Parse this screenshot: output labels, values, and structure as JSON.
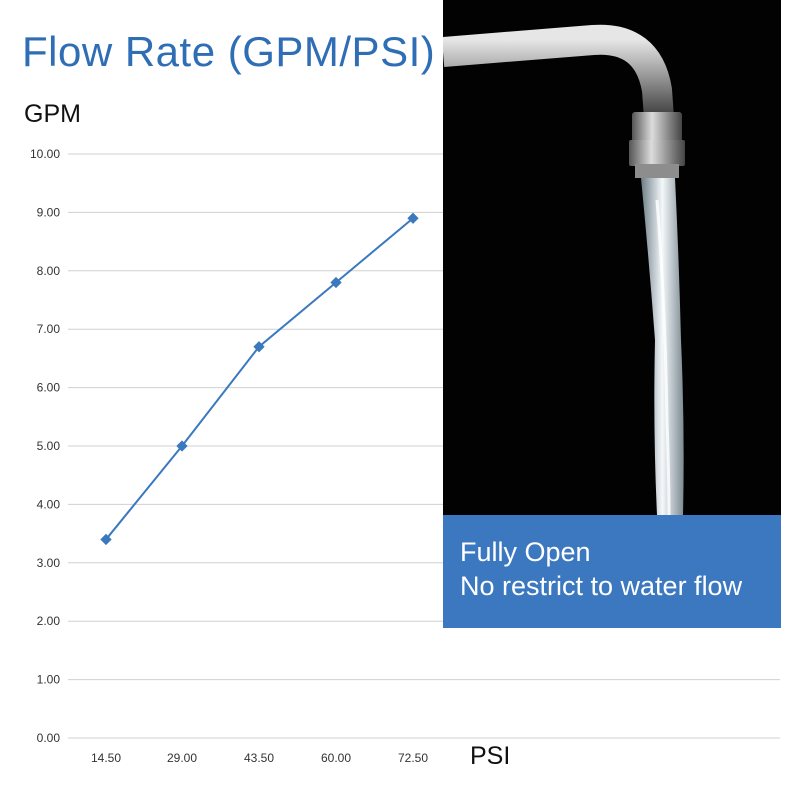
{
  "chart_data": {
    "type": "line",
    "title": "Flow Rate (GPM/PSI)",
    "ylabel": "GPM",
    "xlabel": "PSI",
    "categories": [
      "14.50",
      "29.00",
      "43.50",
      "60.00",
      "72.50"
    ],
    "series": [
      {
        "values": [
          3.4,
          5.0,
          6.7,
          7.8,
          8.9
        ]
      }
    ],
    "ylim": [
      0,
      10
    ],
    "yticks": [
      "0.00",
      "1.00",
      "2.00",
      "3.00",
      "4.00",
      "5.00",
      "6.00",
      "7.00",
      "8.00",
      "9.00",
      "10.00"
    ],
    "grid": true,
    "line_color": "#3a79bd"
  },
  "photo": {
    "caption_line_1": "Fully Open",
    "caption_line_2": "No restrict to water flow",
    "caption_bg": "#3b78c0"
  }
}
